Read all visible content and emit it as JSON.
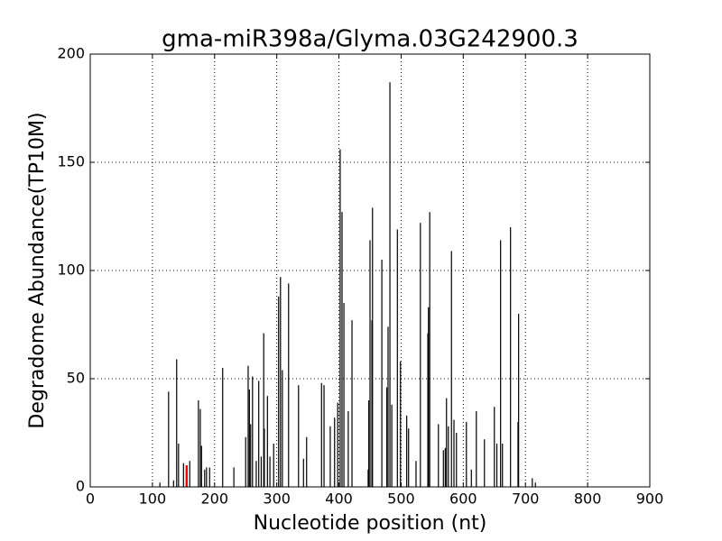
{
  "chart_data": {
    "type": "bar",
    "title": "gma-miR398a/Glyma.03G242900.3",
    "xlabel": "Nucleotide position (nt)",
    "ylabel": "Degradome Abundance(TP10M)",
    "x": [
      112,
      126,
      134,
      139,
      142,
      150,
      160,
      174,
      177,
      179,
      184,
      187,
      192,
      213,
      231,
      250,
      254,
      256,
      258,
      261,
      267,
      271,
      275,
      279,
      280,
      285,
      289,
      295,
      303,
      306,
      309,
      319,
      335,
      343,
      348,
      372,
      376,
      386,
      393,
      398,
      402,
      405,
      408,
      415,
      421,
      447,
      448,
      450,
      453,
      454,
      469,
      477,
      479,
      482,
      485,
      494,
      499,
      509,
      512,
      524,
      531,
      543,
      544,
      546,
      560,
      568,
      571,
      573,
      576,
      581,
      585,
      589,
      605,
      613,
      621,
      634,
      650,
      654,
      660,
      663,
      676,
      688,
      689,
      711,
      716
    ],
    "values": [
      2,
      44,
      3,
      59,
      20,
      11,
      12,
      40,
      36,
      19,
      8,
      9,
      9,
      55,
      9,
      23,
      56,
      45,
      29,
      51,
      12,
      49,
      14,
      71,
      27,
      42,
      14,
      20,
      88,
      97,
      54,
      94,
      47,
      13,
      23,
      48,
      47,
      28,
      32,
      39,
      156,
      127,
      85,
      35,
      77,
      8,
      40,
      114,
      77,
      129,
      105,
      46,
      74,
      187,
      38,
      119,
      58,
      33,
      27,
      12,
      122,
      71,
      83,
      127,
      29,
      17,
      18,
      41,
      28,
      109,
      31,
      25,
      30,
      8,
      35,
      22,
      37,
      20,
      114,
      20,
      120,
      30,
      80,
      4,
      2
    ],
    "color": "#000000",
    "highlight": {
      "x": 155,
      "value": 10,
      "color": "#ff0000"
    },
    "xlim": [
      0,
      900
    ],
    "xticks": [
      0,
      100,
      200,
      300,
      400,
      500,
      600,
      700,
      800,
      900
    ],
    "ylim": [
      0,
      200
    ],
    "yticks": [
      0,
      50,
      100,
      150,
      200
    ],
    "grid": true
  }
}
